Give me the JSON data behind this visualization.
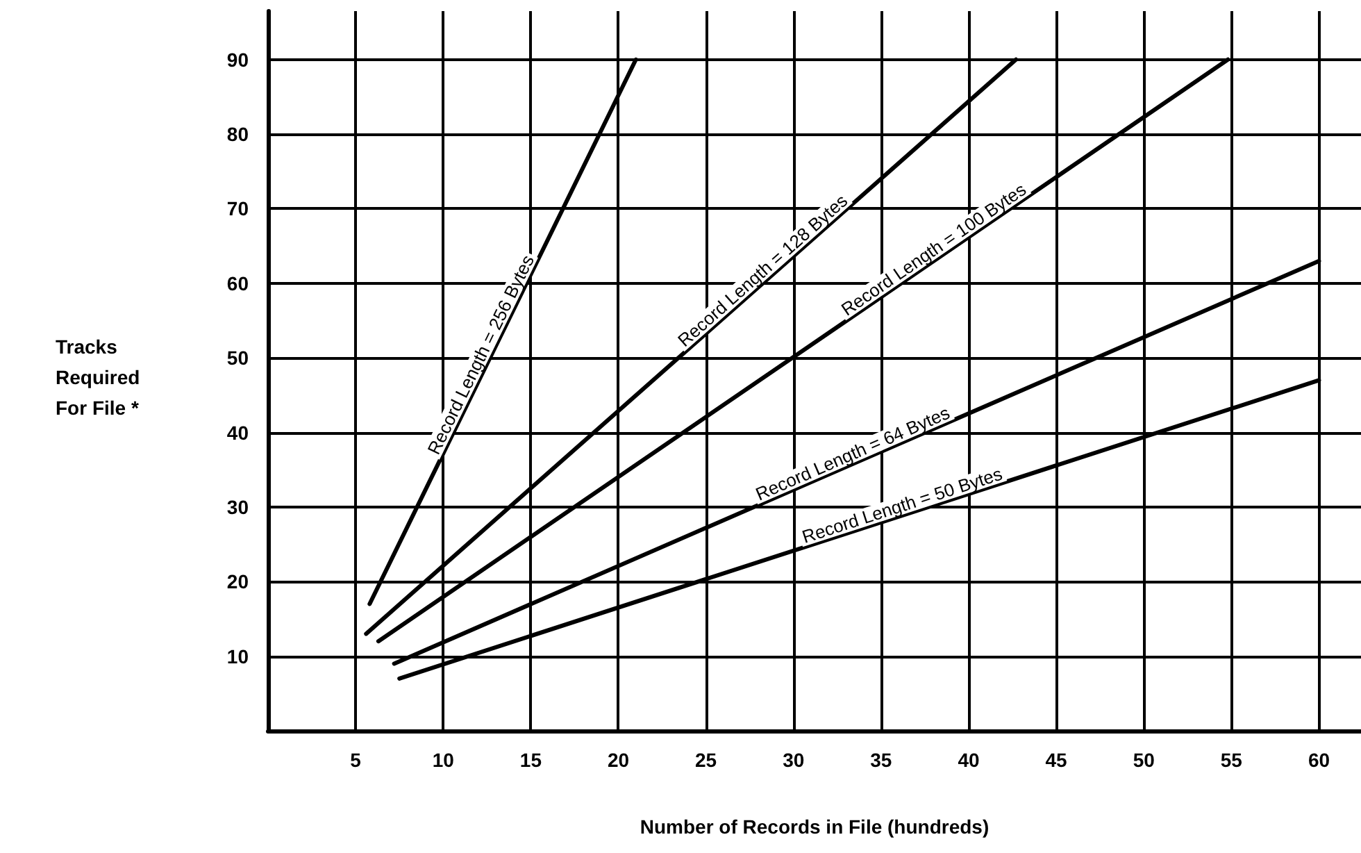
{
  "chart_data": {
    "type": "line",
    "xlabel": "Number of Records in File (hundreds)",
    "ylabel": "Tracks\nRequired\nFor File *",
    "xlim": [
      0,
      62.4
    ],
    "xticks": [
      5,
      10,
      15,
      20,
      25,
      30,
      35,
      40,
      45,
      50,
      55,
      60
    ],
    "ylim": [
      0,
      96.5
    ],
    "yticks": [
      10,
      20,
      30,
      40,
      50,
      60,
      70,
      80,
      90
    ],
    "grid": true,
    "marker": "none",
    "line_style": "solid",
    "series": [
      {
        "name": "Record Length = 256 Bytes",
        "color": "#000000",
        "x": [
          5.8,
          21.0
        ],
        "values": [
          17,
          90
        ]
      },
      {
        "name": "Record Length = 128 Bytes",
        "color": "#000000",
        "x": [
          5.6,
          42.7
        ],
        "values": [
          13,
          90
        ]
      },
      {
        "name": "Record Length = 100 Bytes",
        "color": "#000000",
        "x": [
          6.3,
          54.8
        ],
        "values": [
          12,
          90
        ]
      },
      {
        "name": "Record Length = 64 Bytes",
        "color": "#000000",
        "x": [
          7.2,
          60
        ],
        "values": [
          9,
          63
        ]
      },
      {
        "name": "Record Length = 50 Bytes",
        "color": "#000000",
        "x": [
          7.5,
          60
        ],
        "values": [
          7,
          47
        ]
      }
    ]
  }
}
